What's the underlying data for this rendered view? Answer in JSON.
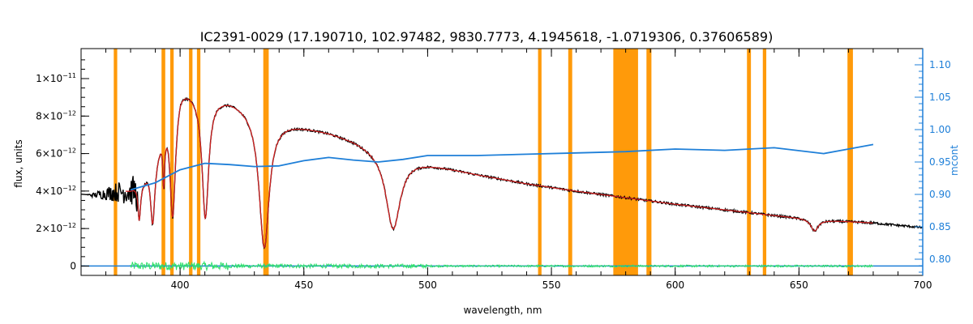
{
  "chart_data": {
    "type": "line",
    "title": "IC2391-0029    (17.190710, 102.97482, 9830.7773, 4.1945618, -1.0719306, 0.37606589)",
    "xlabel": "wavelength, nm",
    "ylabel": "flux, units",
    "y2label": "mcont",
    "xlim": [
      360,
      700
    ],
    "ylim": [
      -5e-13,
      1.16e-11
    ],
    "y2lim": [
      0.775,
      1.125
    ],
    "x_ticks": [
      400,
      450,
      500,
      550,
      600,
      650,
      700
    ],
    "x_tick_labels": [
      "400",
      "450",
      "500",
      "550",
      "600",
      "650",
      "700"
    ],
    "y_ticks": [
      0,
      2e-12,
      4e-12,
      6e-12,
      8e-12,
      1e-11
    ],
    "y_tick_labels": [
      {
        "mantissa": "0",
        "exp": ""
      },
      {
        "mantissa": "2×10",
        "exp": "−12"
      },
      {
        "mantissa": "4×10",
        "exp": "−12"
      },
      {
        "mantissa": "6×10",
        "exp": "−12"
      },
      {
        "mantissa": "8×10",
        "exp": "−12"
      },
      {
        "mantissa": "1×10",
        "exp": "−11"
      }
    ],
    "y2_ticks": [
      0.8,
      0.85,
      0.9,
      0.95,
      1.0,
      1.05,
      1.1
    ],
    "y2_tick_labels": [
      "0.80",
      "0.85",
      "0.90",
      "0.95",
      "1.00",
      "1.05",
      "1.10"
    ],
    "masked_regions": [
      [
        373.2,
        374.6
      ],
      [
        392.5,
        394.0
      ],
      [
        396.0,
        397.4
      ],
      [
        403.6,
        405.0
      ],
      [
        406.8,
        408.2
      ],
      [
        433.6,
        435.8
      ],
      [
        544.6,
        546.0
      ],
      [
        556.8,
        558.4
      ],
      [
        575.0,
        585.0
      ],
      [
        588.4,
        590.4
      ],
      [
        629.0,
        630.6
      ],
      [
        635.4,
        636.8
      ],
      [
        669.6,
        671.8
      ]
    ],
    "series": [
      {
        "role": "observed",
        "color": "#000000",
        "base_points": [
          [
            360,
            3.85e-12
          ],
          [
            365,
            3.8e-12
          ],
          [
            370,
            3.9e-12
          ],
          [
            380,
            4.1e-12
          ],
          [
            385,
            4.6e-12
          ],
          [
            390,
            6e-12
          ],
          [
            395,
            8.2e-12
          ],
          [
            400,
            9.8e-12
          ],
          [
            405,
            9.5e-12
          ],
          [
            410,
            9.2e-12
          ],
          [
            420,
            9e-12
          ],
          [
            430,
            8.5e-12
          ],
          [
            440,
            7.8e-12
          ],
          [
            450,
            7.5e-12
          ],
          [
            460,
            7.2e-12
          ],
          [
            470,
            6.8e-12
          ],
          [
            480,
            6.3e-12
          ],
          [
            490,
            5.8e-12
          ],
          [
            500,
            5.5e-12
          ],
          [
            520,
            4.9e-12
          ],
          [
            540,
            4.4e-12
          ],
          [
            560,
            4e-12
          ],
          [
            580,
            3.65e-12
          ],
          [
            600,
            3.3e-12
          ],
          [
            620,
            3e-12
          ],
          [
            640,
            2.7e-12
          ],
          [
            660,
            2.45e-12
          ],
          [
            680,
            2.3e-12
          ],
          [
            700,
            2.05e-12
          ]
        ],
        "absorption_lines": [
          [
            383.5,
            0.6,
            0.45
          ],
          [
            388.9,
            1.0,
            0.6
          ],
          [
            397.0,
            1.3,
            0.7
          ],
          [
            410.2,
            1.6,
            0.72
          ],
          [
            434.0,
            2.5,
            0.88
          ],
          [
            486.1,
            3.5,
            0.67
          ],
          [
            656.3,
            1.8,
            0.25
          ],
          [
            393.4,
            0.4,
            0.4
          ]
        ]
      },
      {
        "role": "model",
        "color": "#d62020",
        "x_range": [
          378,
          680
        ]
      },
      {
        "role": "continuum",
        "color": "#1e7fd8",
        "axis": "right",
        "points": [
          [
            380,
            0.907
          ],
          [
            390,
            0.918
          ],
          [
            400,
            0.938
          ],
          [
            410,
            0.948
          ],
          [
            420,
            0.946
          ],
          [
            430,
            0.943
          ],
          [
            440,
            0.944
          ],
          [
            450,
            0.952
          ],
          [
            460,
            0.957
          ],
          [
            470,
            0.953
          ],
          [
            480,
            0.95
          ],
          [
            490,
            0.954
          ],
          [
            500,
            0.96
          ],
          [
            520,
            0.96
          ],
          [
            540,
            0.962
          ],
          [
            560,
            0.964
          ],
          [
            580,
            0.966
          ],
          [
            600,
            0.97
          ],
          [
            620,
            0.968
          ],
          [
            640,
            0.972
          ],
          [
            660,
            0.963
          ],
          [
            670,
            0.97
          ],
          [
            680,
            0.977
          ]
        ]
      },
      {
        "role": "residual",
        "color": "#2ee06a",
        "x_range": [
          380,
          680
        ],
        "value": 0
      },
      {
        "role": "zero-line",
        "color": "#1e7fd8",
        "value": 0
      }
    ],
    "colors": {
      "mask": "#ff9a0a",
      "observed": "#000000",
      "model": "#d62020",
      "continuum": "#1e7fd8",
      "residual": "#2ee06a",
      "right_axis": "#1e7fd8"
    }
  }
}
